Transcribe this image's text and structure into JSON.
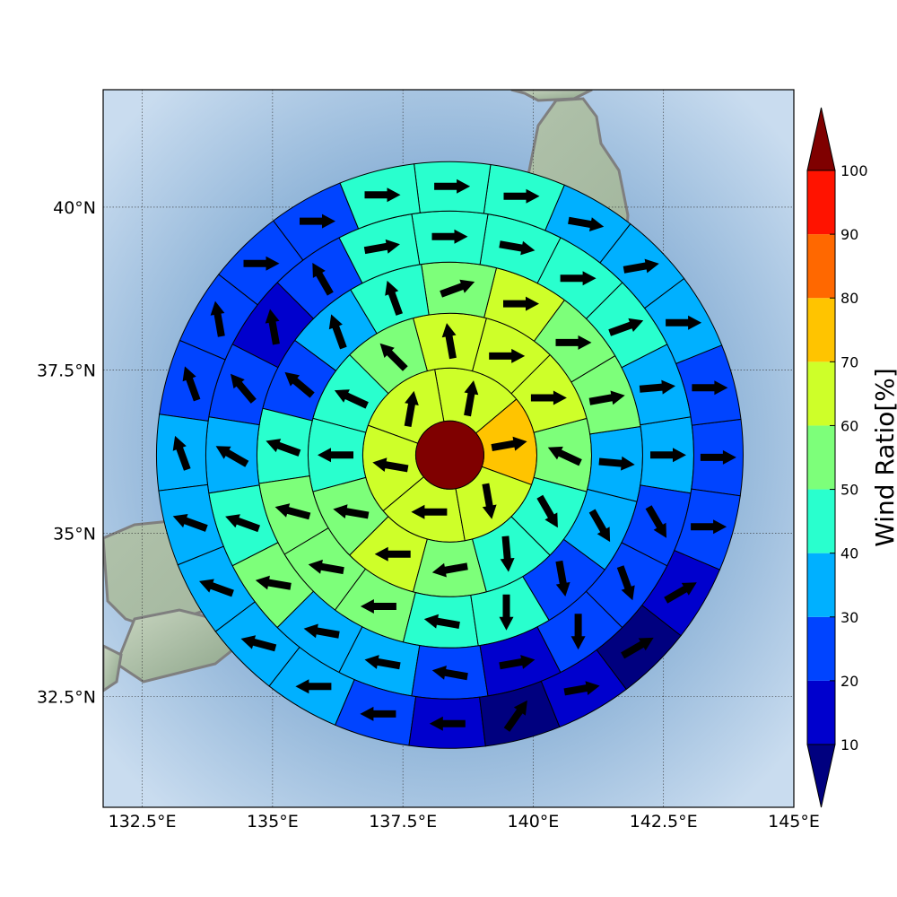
{
  "map": {
    "x_axis": {
      "range": [
        131.75,
        145.0
      ],
      "ticks": [
        132.5,
        135.0,
        137.5,
        140.0,
        142.5,
        145.0
      ],
      "tick_labels": [
        "132.5°E",
        "135°E",
        "137.5°E",
        "140°E",
        "142.5°E",
        "145°E"
      ]
    },
    "y_axis": {
      "range": [
        30.8,
        41.8
      ],
      "ticks": [
        32.5,
        35.0,
        37.5,
        40.0
      ],
      "tick_labels": [
        "32.5°N",
        "35°N",
        "37.5°N",
        "40°N"
      ]
    },
    "grid": true,
    "coastline_color": "#7f7f7f",
    "center": {
      "lon": 138.4,
      "lat": 36.2,
      "color": "#7f0000"
    }
  },
  "colorbar": {
    "title": "Wind Ratio[%]",
    "levels": [
      10,
      20,
      30,
      40,
      50,
      60,
      70,
      80,
      90,
      100
    ],
    "tick_labels": [
      "10",
      "20",
      "30",
      "40",
      "50",
      "60",
      "70",
      "80",
      "90",
      "100"
    ],
    "colors": [
      "#0000cd",
      "#0044ff",
      "#00b0ff",
      "#29ffce",
      "#7dff7a",
      "#ceff29",
      "#ffc400",
      "#ff6800",
      "#ff1300"
    ],
    "under_color": "#00007f",
    "over_color": "#7f0000"
  },
  "wind_sectors": {
    "description_units": "ring index 1 (inner) to 5 (outer); values in percent; wind arrows in degrees (0=east, counterclockwise)",
    "rings": [
      {
        "ring": 1,
        "n": 6,
        "start_deg": -20,
        "values": [
          75,
          65,
          65,
          65,
          65,
          65
        ],
        "arrows": [
          10,
          80,
          80,
          170,
          180,
          280
        ]
      },
      {
        "ring": 2,
        "n": 12,
        "start_deg": -15,
        "values": [
          55,
          65,
          65,
          60,
          55,
          45,
          45,
          55,
          65,
          55,
          45,
          45
        ],
        "arrows": [
          155,
          0,
          0,
          100,
          135,
          155,
          180,
          170,
          180,
          190,
          275,
          300
        ]
      },
      {
        "ring": 3,
        "n": 16,
        "start_deg": -14,
        "values": [
          35,
          55,
          55,
          65,
          55,
          45,
          35,
          25,
          45,
          55,
          55,
          55,
          45,
          45,
          25,
          35
        ],
        "arrows": [
          -5,
          10,
          0,
          0,
          20,
          110,
          110,
          140,
          160,
          165,
          170,
          180,
          170,
          270,
          280,
          300
        ]
      },
      {
        "ring": 4,
        "n": 20,
        "start_deg": -9,
        "values": [
          35,
          35,
          45,
          45,
          45,
          45,
          45,
          25,
          15,
          25,
          35,
          45,
          55,
          35,
          35,
          25,
          15,
          25,
          25,
          25
        ],
        "arrows": [
          0,
          5,
          20,
          0,
          -10,
          0,
          10,
          120,
          100,
          130,
          150,
          160,
          170,
          170,
          170,
          170,
          10,
          270,
          290,
          300
        ]
      },
      {
        "ring": 5,
        "n": 24,
        "start_deg": -8,
        "values": [
          25,
          25,
          35,
          35,
          35,
          45,
          45,
          45,
          25,
          25,
          25,
          25,
          35,
          35,
          35,
          35,
          35,
          25,
          15,
          5,
          15,
          5,
          15,
          25
        ],
        "arrows": [
          0,
          0,
          0,
          10,
          -10,
          0,
          0,
          0,
          0,
          0,
          100,
          110,
          110,
          160,
          160,
          165,
          180,
          180,
          180,
          55,
          10,
          30,
          30,
          0
        ]
      }
    ]
  }
}
